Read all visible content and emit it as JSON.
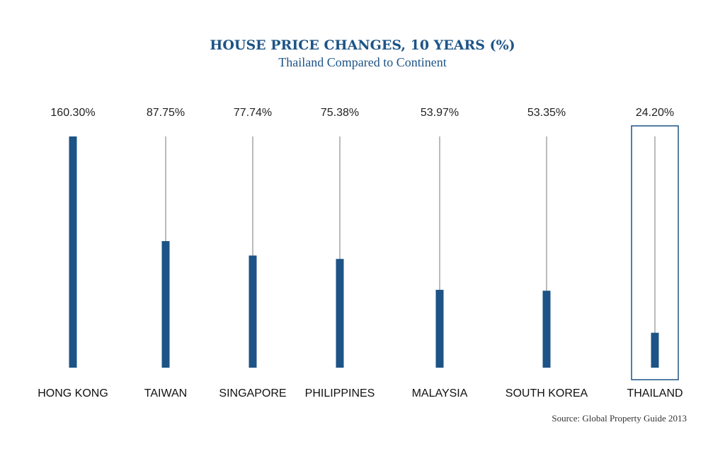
{
  "chart_data": {
    "type": "bar",
    "title": "HOUSE PRICE CHANGES, 10 YEARS (%)",
    "subtitle": "Thailand Compared to Continent",
    "categories": [
      "HONG KONG",
      "TAIWAN",
      "SINGAPORE",
      "PHILIPPINES",
      "MALAYSIA",
      "SOUTH KOREA",
      "THAILAND"
    ],
    "values": [
      160.3,
      87.75,
      77.74,
      75.38,
      53.97,
      53.35,
      24.2
    ],
    "value_labels": [
      "160.30%",
      "87.75%",
      "77.74%",
      "75.38%",
      "53.97%",
      "53.35%",
      "24.20%"
    ],
    "ylim": [
      0,
      160.3
    ],
    "highlighted_category": "THAILAND",
    "grid": false,
    "legend": "none",
    "source": "Source: Global Property Guide 2013",
    "colors": {
      "bar": "#1d5386",
      "reference_line": "#777777",
      "highlight_box": "#1d5386",
      "title": "#1d5386"
    }
  }
}
